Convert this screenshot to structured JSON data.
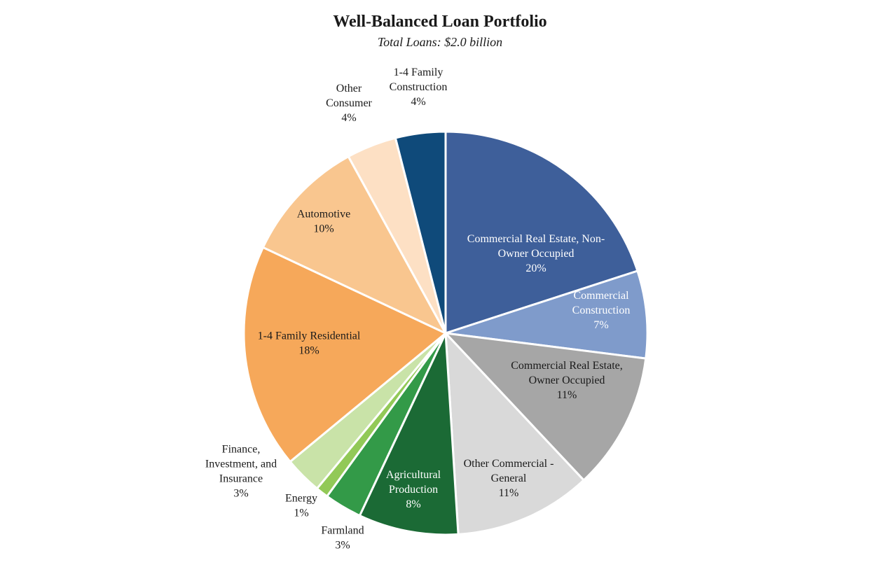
{
  "chart_data": {
    "type": "pie",
    "title": "Well-Balanced Loan Portfolio",
    "subtitle": "Total Loans: $2.0 billion",
    "slices": [
      {
        "label_lines": [
          "Commercial Real Estate, Non-",
          "Owner Occupied"
        ],
        "value_text": "20%",
        "value": 20,
        "color": "#3e5f9a",
        "text_color": "#ffffff"
      },
      {
        "label_lines": [
          "Commercial",
          "Construction"
        ],
        "value_text": "7%",
        "value": 7,
        "color": "#7f9bcb",
        "text_color": "#ffffff"
      },
      {
        "label_lines": [
          "Commercial Real Estate,",
          "Owner Occupied"
        ],
        "value_text": "11%",
        "value": 11,
        "color": "#a6a6a6",
        "text_color": "#1a1a1a"
      },
      {
        "label_lines": [
          "Other Commercial -",
          "General"
        ],
        "value_text": "11%",
        "value": 11,
        "color": "#d9d9d9",
        "text_color": "#1a1a1a"
      },
      {
        "label_lines": [
          "Agricultural",
          "Production"
        ],
        "value_text": "8%",
        "value": 8,
        "color": "#1b6a35",
        "text_color": "#ffffff"
      },
      {
        "label_lines": [
          "Farmland"
        ],
        "value_text": "3%",
        "value": 3,
        "color": "#339a48",
        "text_color": "#1a1a1a"
      },
      {
        "label_lines": [
          "Energy"
        ],
        "value_text": "1%",
        "value": 1,
        "color": "#92c957",
        "text_color": "#1a1a1a"
      },
      {
        "label_lines": [
          "Finance,",
          "Investment, and",
          "Insurance"
        ],
        "value_text": "3%",
        "value": 3,
        "color": "#c9e3a8",
        "text_color": "#1a1a1a"
      },
      {
        "label_lines": [
          "1-4 Family Residential"
        ],
        "value_text": "18%",
        "value": 18,
        "color": "#f6a85a",
        "text_color": "#1a1a1a"
      },
      {
        "label_lines": [
          "Automotive"
        ],
        "value_text": "10%",
        "value": 10,
        "color": "#f9c68f",
        "text_color": "#1a1a1a"
      },
      {
        "label_lines": [
          "Other",
          "Consumer"
        ],
        "value_text": "4%",
        "value": 4,
        "color": "#fde0c4",
        "text_color": "#1a1a1a"
      },
      {
        "label_lines": [
          "1-4 Family",
          "Construction"
        ],
        "value_text": "4%",
        "value": 4,
        "color": "#0f4a7a",
        "text_color": "#1a1a1a"
      }
    ]
  }
}
